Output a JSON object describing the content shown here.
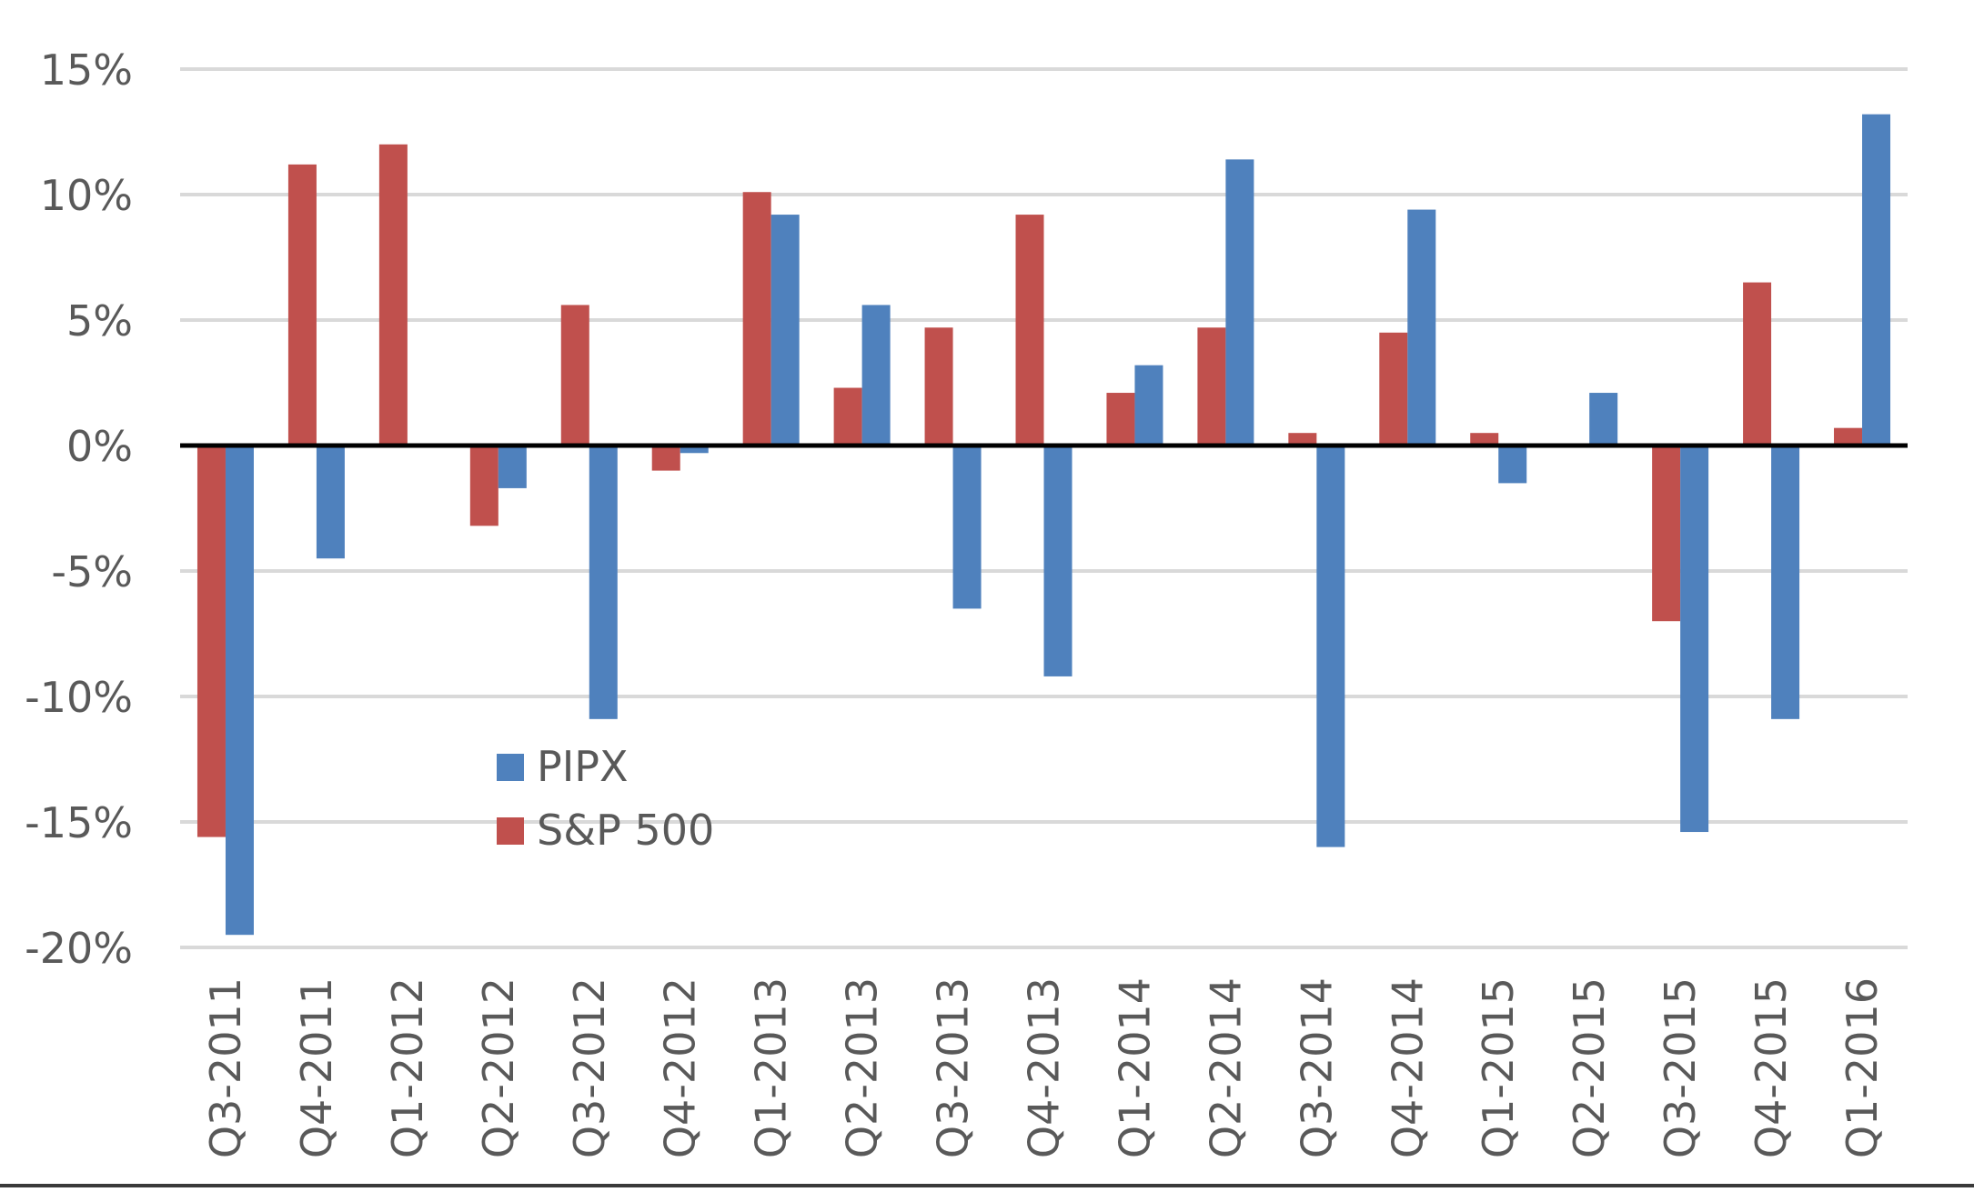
{
  "chart_data": {
    "type": "bar",
    "title": "",
    "xlabel": "",
    "ylabel": "",
    "ylim": [
      -20,
      15
    ],
    "yticks": [
      15,
      10,
      5,
      0,
      -5,
      -10,
      -15,
      -20
    ],
    "ytick_labels": [
      "15%",
      "10%",
      "5%",
      "0%",
      "-5%",
      "-10%",
      "-15%",
      "-20%"
    ],
    "grid": true,
    "legend_position": "lower-left",
    "categories": [
      "Q3-2011",
      "Q4-2011",
      "Q1-2012",
      "Q2-2012",
      "Q3-2012",
      "Q4-2012",
      "Q1-2013",
      "Q2-2013",
      "Q3-2013",
      "Q4-2013",
      "Q1-2014",
      "Q2-2014",
      "Q3-2014",
      "Q4-2014",
      "Q1-2015",
      "Q2-2015",
      "Q3-2015",
      "Q4-2015",
      "Q1-2016"
    ],
    "series": [
      {
        "name": "S&P 500",
        "color": "#c0504d",
        "values": [
          -15.6,
          11.2,
          12.0,
          -3.2,
          5.6,
          -1.0,
          10.1,
          2.3,
          4.7,
          9.2,
          2.1,
          4.7,
          0.5,
          4.5,
          0.5,
          0.0,
          -7.0,
          6.5,
          0.7
        ]
      },
      {
        "name": "PIPX",
        "color": "#4f81bd",
        "values": [
          -19.5,
          -4.5,
          0.0,
          -1.7,
          -10.9,
          -0.3,
          9.2,
          5.6,
          -6.5,
          -9.2,
          3.2,
          11.4,
          -16.0,
          9.4,
          -1.5,
          2.1,
          -15.4,
          -10.9,
          13.2
        ]
      }
    ],
    "legend": [
      "PIPX",
      "S&P 500"
    ]
  }
}
